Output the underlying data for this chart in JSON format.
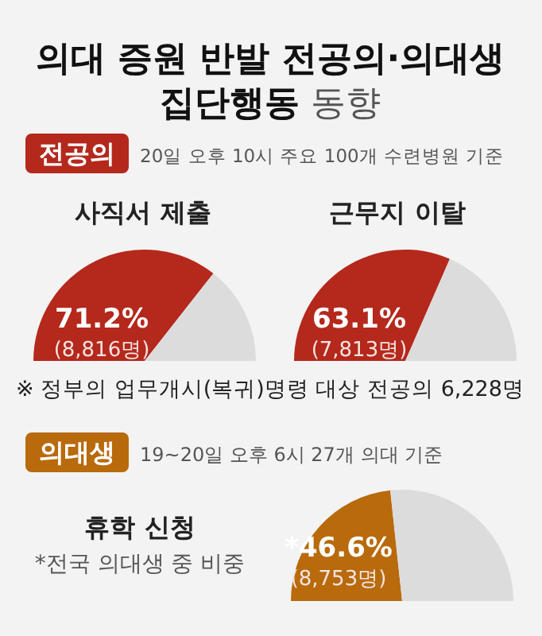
{
  "chart_data": [
    {
      "type": "other",
      "title": "의대 증원 반발 전공의·의대생 집단행동 동향",
      "annotations": [
        "전공의",
        "20일 오후 10시 주요 100개 수련병원 기준"
      ]
    },
    {
      "type": "pie",
      "title": "사직서 제출",
      "categories": [
        null,
        null
      ],
      "values": [
        71.2,
        28.8
      ],
      "colors": [
        "#b5281c",
        "#dcdcdc"
      ],
      "value_labels": [
        "71.2%",
        null
      ],
      "annotations": [
        "(8,816명)"
      ]
    },
    {
      "type": "pie",
      "title": "근무지 이탈",
      "categories": [
        null,
        null
      ],
      "values": [
        63.1,
        36.9
      ],
      "colors": [
        "#b5281c",
        "#dcdcdc"
      ],
      "value_labels": [
        "63.1%",
        null
      ],
      "annotations": [
        "(7,813명)",
        "※ 정부의 업무개시(복귀)명령 대상 전공의 6,228명"
      ]
    },
    {
      "type": "pie",
      "title": "휴학 신청",
      "subtitle": "*전국 의대생 중 비중",
      "categories": [
        null,
        null
      ],
      "values": [
        46.6,
        53.4
      ],
      "colors": [
        "#b86a0c",
        "#dcdcdc"
      ],
      "value_labels": [
        "*46.6%",
        null
      ],
      "annotations": [
        "(8,753명)",
        "의대생",
        "19~20일 오후 6시 27개 의대 기준"
      ]
    }
  ]
}
